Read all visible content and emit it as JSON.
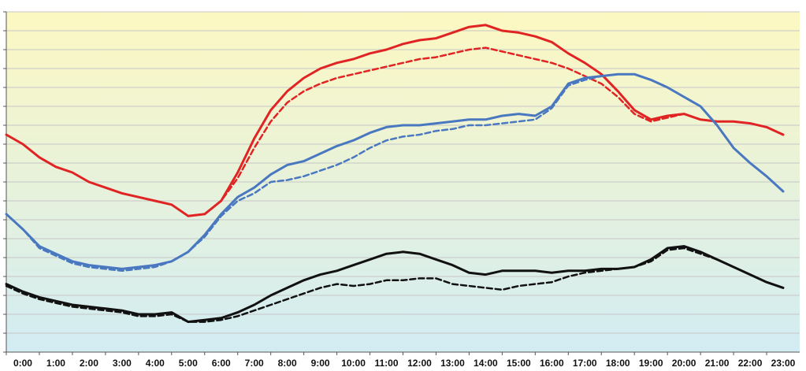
{
  "chart_data": {
    "type": "line",
    "title": "",
    "xlabel": "",
    "ylabel": "",
    "x_ticks": [
      "0:00",
      "1:00",
      "2:00",
      "3:00",
      "4:00",
      "5:00",
      "6:00",
      "7:00",
      "8:00",
      "9:00",
      "10:00",
      "11:00",
      "12:00",
      "13:00",
      "14:00",
      "15:00",
      "16:00",
      "17:00",
      "18:00",
      "19:00",
      "20:00",
      "21:00",
      "22:00",
      "23:00"
    ],
    "xlim": [
      0,
      24
    ],
    "ylim": [
      0,
      18
    ],
    "y_tick_count": 19,
    "y_tick_labels_shown": false,
    "grid": true,
    "legend": "none",
    "background_gradient": [
      "#fdf8c2",
      "#d2ecf3"
    ],
    "series": [
      {
        "color": "#e02424",
        "style": "solid",
        "x": [
          0,
          0.5,
          1,
          1.5,
          2,
          2.5,
          3,
          3.5,
          4,
          4.5,
          5,
          5.5,
          6,
          6.5,
          7,
          7.5,
          8,
          8.5,
          9,
          9.5,
          10,
          10.5,
          11,
          11.5,
          12,
          12.5,
          13,
          13.5,
          14,
          14.5,
          15,
          15.5,
          16,
          16.5,
          17,
          17.5,
          18,
          18.5,
          19,
          19.5,
          20,
          20.5,
          21,
          21.5,
          22,
          22.5,
          23,
          23.5
        ],
        "y": [
          11.5,
          11,
          10.3,
          9.8,
          9.5,
          9,
          8.7,
          8.4,
          8.2,
          8,
          7.8,
          7.2,
          7.3,
          8,
          9.5,
          11.3,
          12.8,
          13.8,
          14.5,
          15,
          15.3,
          15.5,
          15.8,
          16,
          16.3,
          16.5,
          16.6,
          16.9,
          17.2,
          17.3,
          17,
          16.9,
          16.7,
          16.4,
          15.8,
          15.3,
          14.7,
          13.8,
          12.8,
          12.3,
          12.5,
          12.6,
          12.3,
          12.2,
          12.2,
          12.1,
          11.9,
          11.5
        ]
      },
      {
        "color": "#e02424",
        "style": "dashed",
        "x": [
          0,
          0.5,
          1,
          1.5,
          2,
          2.5,
          3,
          3.5,
          4,
          4.5,
          5,
          5.5,
          6,
          6.5,
          7,
          7.5,
          8,
          8.5,
          9,
          9.5,
          10,
          10.5,
          11,
          11.5,
          12,
          12.5,
          13,
          13.5,
          14,
          14.5,
          15,
          15.5,
          16,
          16.5,
          17,
          17.5,
          18,
          18.5,
          19,
          19.5,
          20,
          20.5,
          21,
          21.5,
          22,
          22.5,
          23,
          23.5
        ],
        "y": [
          11.5,
          11,
          10.3,
          9.8,
          9.5,
          9,
          8.7,
          8.4,
          8.2,
          8,
          7.8,
          7.2,
          7.3,
          8,
          9.2,
          10.8,
          12.2,
          13.2,
          13.8,
          14.2,
          14.5,
          14.7,
          14.9,
          15.1,
          15.3,
          15.5,
          15.6,
          15.8,
          16,
          16.1,
          15.9,
          15.7,
          15.5,
          15.3,
          15,
          14.6,
          14.2,
          13.5,
          12.6,
          12.2,
          12.4,
          12.6,
          12.3,
          12.2,
          12.2,
          12.1,
          11.9,
          11.5
        ]
      },
      {
        "color": "#4a78c0",
        "style": "solid",
        "x": [
          0,
          0.5,
          1,
          1.5,
          2,
          2.5,
          3,
          3.5,
          4,
          4.5,
          5,
          5.5,
          6,
          6.5,
          7,
          7.5,
          8,
          8.5,
          9,
          9.5,
          10,
          10.5,
          11,
          11.5,
          12,
          12.5,
          13,
          13.5,
          14,
          14.5,
          15,
          15.5,
          16,
          16.5,
          17,
          17.5,
          18,
          18.5,
          19,
          19.5,
          20,
          20.5,
          21,
          21.5,
          22,
          22.5,
          23,
          23.5
        ],
        "y": [
          7.3,
          6.5,
          5.6,
          5.2,
          4.8,
          4.6,
          4.5,
          4.4,
          4.5,
          4.6,
          4.8,
          5.3,
          6.2,
          7.3,
          8.2,
          8.7,
          9.4,
          9.9,
          10.1,
          10.5,
          10.9,
          11.2,
          11.6,
          11.9,
          12,
          12,
          12.1,
          12.2,
          12.3,
          12.3,
          12.5,
          12.6,
          12.5,
          13,
          14.2,
          14.5,
          14.6,
          14.7,
          14.7,
          14.4,
          14,
          13.5,
          13,
          12,
          10.8,
          10,
          9.3,
          8.5
        ]
      },
      {
        "color": "#4a78c0",
        "style": "dashed",
        "x": [
          0,
          0.5,
          1,
          1.5,
          2,
          2.5,
          3,
          3.5,
          4,
          4.5,
          5,
          5.5,
          6,
          6.5,
          7,
          7.5,
          8,
          8.5,
          9,
          9.5,
          10,
          10.5,
          11,
          11.5,
          12,
          12.5,
          13,
          13.5,
          14,
          14.5,
          15,
          15.5,
          16,
          16.5,
          17,
          17.5,
          18,
          18.5,
          19,
          19.5,
          20,
          20.5,
          21,
          21.5,
          22,
          22.5,
          23,
          23.5
        ],
        "y": [
          7.3,
          6.5,
          5.5,
          5.1,
          4.7,
          4.5,
          4.4,
          4.3,
          4.4,
          4.5,
          4.8,
          5.3,
          6.1,
          7.2,
          8,
          8.4,
          9,
          9.1,
          9.3,
          9.6,
          9.9,
          10.3,
          10.8,
          11.2,
          11.4,
          11.5,
          11.7,
          11.8,
          12,
          12,
          12.1,
          12.2,
          12.3,
          12.9,
          14.1,
          14.4,
          14.6,
          14.7,
          14.7,
          14.4,
          14,
          13.5,
          13,
          12,
          10.8,
          10,
          9.3,
          8.5
        ]
      },
      {
        "color": "#111111",
        "style": "solid",
        "x": [
          0,
          0.5,
          1,
          1.5,
          2,
          2.5,
          3,
          3.5,
          4,
          4.5,
          5,
          5.5,
          6,
          6.5,
          7,
          7.5,
          8,
          8.5,
          9,
          9.5,
          10,
          10.5,
          11,
          11.5,
          12,
          12.5,
          13,
          13.5,
          14,
          14.5,
          15,
          15.5,
          16,
          16.5,
          17,
          17.5,
          18,
          18.5,
          19,
          19.5,
          20,
          20.5,
          21,
          21.5,
          22,
          22.5,
          23,
          23.5
        ],
        "y": [
          3.6,
          3.2,
          2.9,
          2.7,
          2.5,
          2.4,
          2.3,
          2.2,
          2,
          2,
          2.1,
          1.6,
          1.7,
          1.8,
          2.1,
          2.5,
          3,
          3.4,
          3.8,
          4.1,
          4.3,
          4.6,
          4.9,
          5.2,
          5.3,
          5.2,
          4.9,
          4.6,
          4.2,
          4.1,
          4.3,
          4.3,
          4.3,
          4.2,
          4.3,
          4.3,
          4.4,
          4.4,
          4.5,
          4.9,
          5.5,
          5.6,
          5.3,
          4.9,
          4.5,
          4.1,
          3.7,
          3.4
        ]
      },
      {
        "color": "#111111",
        "style": "dashed",
        "x": [
          0,
          0.5,
          1,
          1.5,
          2,
          2.5,
          3,
          3.5,
          4,
          4.5,
          5,
          5.5,
          6,
          6.5,
          7,
          7.5,
          8,
          8.5,
          9,
          9.5,
          10,
          10.5,
          11,
          11.5,
          12,
          12.5,
          13,
          13.5,
          14,
          14.5,
          15,
          15.5,
          16,
          16.5,
          17,
          17.5,
          18,
          18.5,
          19,
          19.5,
          20,
          20.5,
          21,
          21.5,
          22,
          22.5,
          23,
          23.5
        ],
        "y": [
          3.5,
          3.1,
          2.8,
          2.6,
          2.4,
          2.3,
          2.2,
          2.1,
          1.9,
          1.9,
          2,
          1.6,
          1.6,
          1.7,
          1.9,
          2.2,
          2.5,
          2.8,
          3.1,
          3.4,
          3.6,
          3.5,
          3.6,
          3.8,
          3.8,
          3.9,
          3.9,
          3.6,
          3.5,
          3.4,
          3.3,
          3.5,
          3.6,
          3.7,
          4,
          4.2,
          4.3,
          4.4,
          4.5,
          4.8,
          5.4,
          5.5,
          5.2,
          4.9,
          4.5,
          4.1,
          3.7,
          3.4
        ]
      }
    ]
  }
}
